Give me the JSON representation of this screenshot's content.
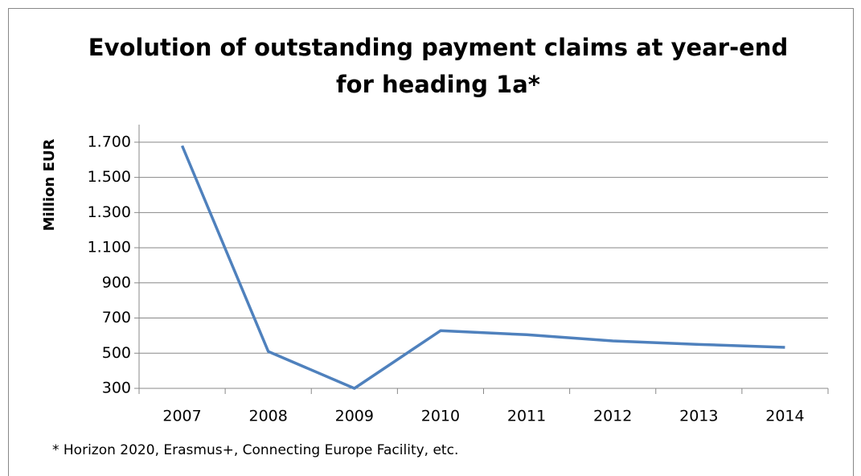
{
  "chart_data": {
    "type": "line",
    "title": "Evolution of outstanding payment claims at year-end\nfor heading 1a*",
    "y_label": "Million EUR",
    "footnote": "* Horizon 2020,  Erasmus+, Connecting Europe Facility, etc.",
    "categories": [
      "2007",
      "2008",
      "2009",
      "2010",
      "2011",
      "2012",
      "2013",
      "2014"
    ],
    "series": [
      {
        "name": "Outstanding payment claims",
        "color": "#4f81bd",
        "values": [
          1680,
          510,
          300,
          628,
          605,
          570,
          550,
          533
        ]
      }
    ],
    "ylim": [
      300,
      1800
    ],
    "yticks": [
      300,
      500,
      700,
      900,
      {
        "value": 1100,
        "label": "1.100"
      },
      {
        "value": 1300,
        "label": "1.300"
      },
      {
        "value": 1500,
        "label": "1.500"
      },
      {
        "value": 1700,
        "label": "1.700"
      }
    ],
    "grid": true
  }
}
